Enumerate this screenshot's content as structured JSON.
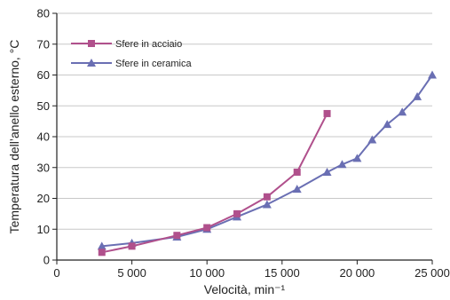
{
  "chart_data": {
    "type": "line",
    "xlabel": "Velocità, min⁻¹",
    "ylabel": "Temperatura dell’anello esterno, °C",
    "xlim": [
      0,
      25000
    ],
    "ylim": [
      0,
      80
    ],
    "x_ticks": [
      0,
      5000,
      10000,
      15000,
      20000,
      25000
    ],
    "x_tick_labels": [
      "0",
      "5 000",
      "10 000",
      "15 000",
      "20 000",
      "25 000"
    ],
    "y_ticks": [
      0,
      10,
      20,
      30,
      40,
      50,
      60,
      70,
      80
    ],
    "y_tick_labels": [
      "0",
      "10",
      "20",
      "30",
      "40",
      "50",
      "60",
      "70",
      "80"
    ],
    "grid": "horizontal",
    "legend_position": "top-left",
    "series": [
      {
        "name": "Sfere in acciaio",
        "color": "#b0508c",
        "marker": "square",
        "x": [
          3000,
          5000,
          8000,
          10000,
          12000,
          14000,
          16000,
          18000
        ],
        "y": [
          2.5,
          4.5,
          8,
          10.5,
          15,
          20.5,
          28.5,
          47.5
        ]
      },
      {
        "name": "Sfere in ceramica",
        "color": "#6a6fb3",
        "marker": "triangle",
        "x": [
          3000,
          5000,
          8000,
          10000,
          12000,
          14000,
          16000,
          18000,
          19000,
          20000,
          21000,
          22000,
          23000,
          24000,
          25000
        ],
        "y": [
          4.5,
          5.5,
          7.5,
          10,
          14,
          18,
          23,
          28.5,
          31,
          33,
          39,
          44,
          48,
          53,
          60
        ]
      }
    ]
  }
}
